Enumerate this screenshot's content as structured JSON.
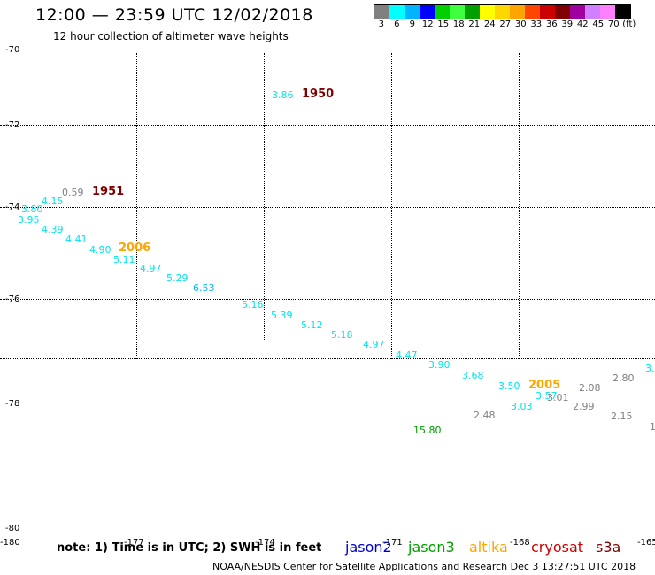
{
  "header": {
    "title": "12:00 — 23:59 UTC 12/02/2018",
    "subtitle": "12 hour collection of altimeter wave heights"
  },
  "colorbar": {
    "swatches": [
      "#808080",
      "#00ffff",
      "#00b4ff",
      "#0000ff",
      "#00d000",
      "#40ff40",
      "#00a000",
      "#ffff00",
      "#ffd700",
      "#ffa500",
      "#ff4500",
      "#cc0000",
      "#800000",
      "#a000a0",
      "#d080ff",
      "#ff80ff",
      "#000000"
    ],
    "labels": [
      "3",
      "6",
      "9",
      "12",
      "15",
      "18",
      "21",
      "24",
      "27",
      "30",
      "33",
      "36",
      "39",
      "42",
      "45",
      "70",
      "(ft)"
    ]
  },
  "axes": {
    "lat_labels": [
      {
        "text": "-70"
      },
      {
        "text": "-72"
      },
      {
        "text": "-74"
      },
      {
        "text": "-76"
      },
      {
        "text": "-78"
      },
      {
        "text": "-80"
      }
    ],
    "lon_labels": [
      {
        "text": "-180"
      },
      {
        "text": "-177"
      },
      {
        "text": "-174"
      },
      {
        "text": "-171"
      },
      {
        "text": "-168"
      },
      {
        "text": "-165"
      }
    ]
  },
  "wave_heights": [
    {
      "text": "3.86",
      "color": "#00e5ee"
    },
    {
      "text": "0.59",
      "color": "#808080"
    },
    {
      "text": "4.15",
      "color": "#00e5ee"
    },
    {
      "text": "3.80",
      "color": "#00e5ee"
    },
    {
      "text": "3.95",
      "color": "#00e5ee"
    },
    {
      "text": "4.39",
      "color": "#00e5ee"
    },
    {
      "text": "4.41",
      "color": "#00e5ee"
    },
    {
      "text": "4.90",
      "color": "#00e5ee"
    },
    {
      "text": "5.11",
      "color": "#00e5ee"
    },
    {
      "text": "4.97",
      "color": "#00e5ee"
    },
    {
      "text": "5.29",
      "color": "#00e5ee"
    },
    {
      "text": "6.53",
      "color": "#00b4ff"
    },
    {
      "text": "5.16",
      "color": "#00e5ee"
    },
    {
      "text": "5.39",
      "color": "#00e5ee"
    },
    {
      "text": "5.12",
      "color": "#00e5ee"
    },
    {
      "text": "5.18",
      "color": "#00e5ee"
    },
    {
      "text": "4.97",
      "color": "#00e5ee"
    },
    {
      "text": "4.47",
      "color": "#00e5ee"
    },
    {
      "text": "3.90",
      "color": "#00e5ee"
    },
    {
      "text": "3.68",
      "color": "#00e5ee"
    },
    {
      "text": "3.50",
      "color": "#00e5ee"
    },
    {
      "text": "3.03",
      "color": "#00e5ee"
    },
    {
      "text": "3.57",
      "color": "#00e5ee"
    },
    {
      "text": "3.01",
      "color": "#808080"
    },
    {
      "text": "2.08",
      "color": "#808080"
    },
    {
      "text": "2.80",
      "color": "#808080"
    },
    {
      "text": "3.",
      "color": "#00e5ee"
    },
    {
      "text": "2.48",
      "color": "#808080"
    },
    {
      "text": "2.99",
      "color": "#808080"
    },
    {
      "text": "2.15",
      "color": "#808080"
    },
    {
      "text": "1",
      "color": "#808080"
    },
    {
      "text": "15.80",
      "color": "#00a000"
    }
  ],
  "pass_times": [
    {
      "text": "1950",
      "color": "#800000"
    },
    {
      "text": "1951",
      "color": "#800000"
    },
    {
      "text": "2006",
      "color": "#ffa500"
    },
    {
      "text": "2005",
      "color": "#ffa500"
    }
  ],
  "legend": {
    "note": "note: 1) Time is in UTC; 2) SWH is in feet",
    "satellites": [
      {
        "text": "jason2",
        "color": "#0000cc"
      },
      {
        "text": "jason3",
        "color": "#00a000"
      },
      {
        "text": "altika",
        "color": "#ffa500"
      },
      {
        "text": "cryosat",
        "color": "#cc0000"
      },
      {
        "text": "s3a",
        "color": "#800000"
      }
    ]
  },
  "footer": "NOAA/NESDIS Center for Satellite Applications and Research    Dec  3 13:27:51 UTC 2018"
}
